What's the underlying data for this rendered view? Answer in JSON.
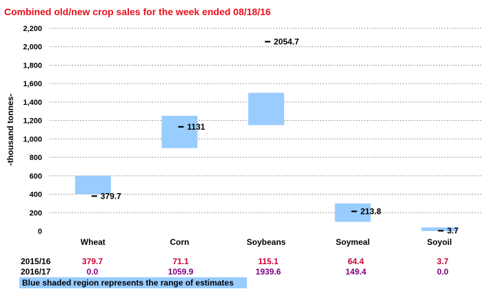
{
  "title": "Combined old/new crop sales for the week ended 08/18/16",
  "chart_data": {
    "type": "bar",
    "title": "Combined old/new crop sales for the week ended 08/18/16",
    "ylabel": "-thousand tonnes-",
    "ylim": [
      0,
      2200
    ],
    "ytick_step": 200,
    "yticks": [
      "0",
      "200",
      "400",
      "600",
      "800",
      "1,000",
      "1,200",
      "1,400",
      "1,600",
      "1,800",
      "2,000",
      "2,200"
    ],
    "grid": true,
    "categories": [
      "Wheat",
      "Corn",
      "Soybeans",
      "Soymeal",
      "Soyoil"
    ],
    "series": [
      {
        "values": [
          379.7,
          1131,
          2054.7,
          213.8,
          3.7
        ]
      }
    ],
    "value_labels": [
      "379.7",
      "1131",
      "2054.7",
      "213.8",
      "3.7"
    ],
    "ranges": [
      [
        400,
        600
      ],
      [
        900,
        1250
      ],
      [
        1150,
        1500
      ],
      [
        100,
        300
      ],
      [
        0,
        40
      ]
    ],
    "range_color": "#99ccff"
  },
  "table": {
    "rows": [
      {
        "label": "2015/16",
        "color": "#cc0033",
        "values": [
          "379.7",
          "71.1",
          "115.1",
          "64.4",
          "3.7"
        ]
      },
      {
        "label": "2016/17",
        "color": "#800080",
        "values": [
          "0.0",
          "1059.9",
          "1939.6",
          "149.4",
          "0.0"
        ]
      }
    ]
  },
  "legend": {
    "text": "Blue shaded region represents the range of estimates",
    "color": "#99ccff"
  }
}
